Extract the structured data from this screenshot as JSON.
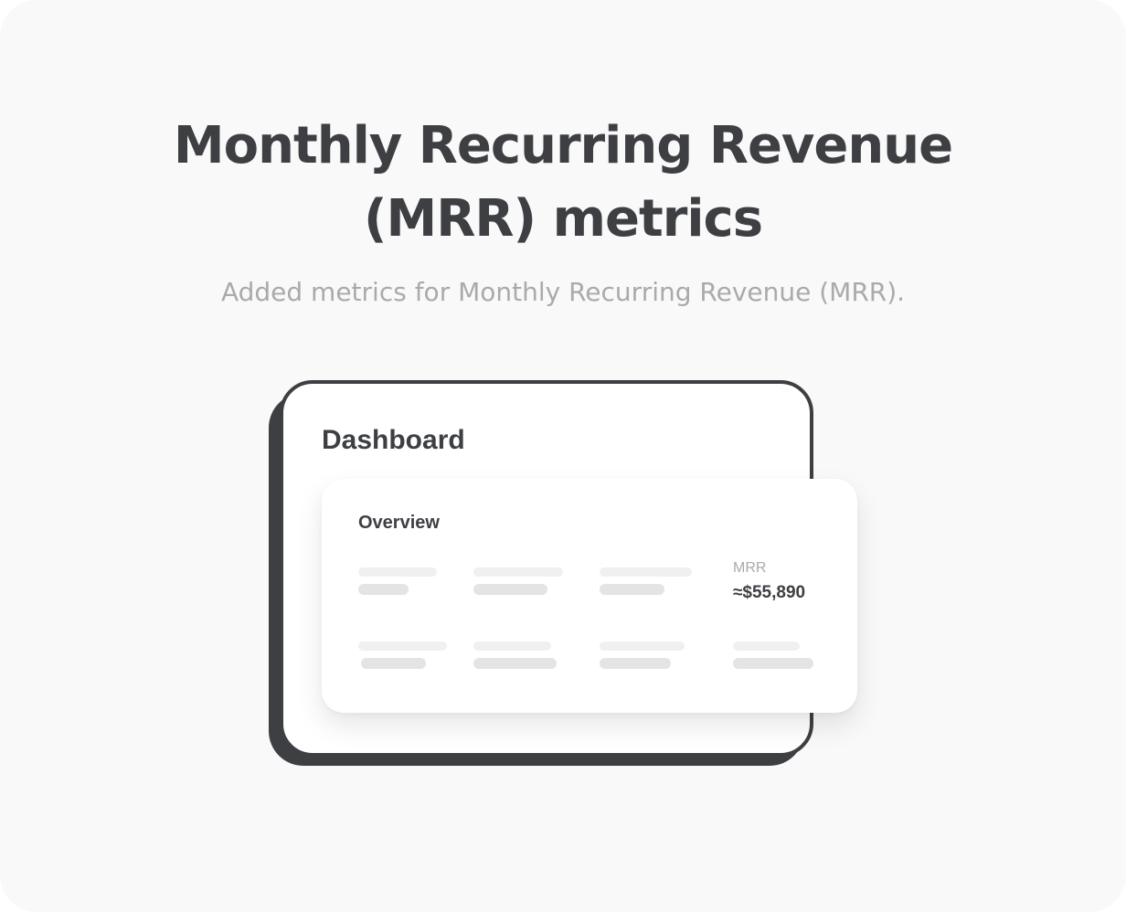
{
  "hero": {
    "title_line_1": "Monthly Recurring Revenue",
    "title_line_2": "(MRR) metrics",
    "subtitle": "Added metrics for Monthly Recurring Revenue (MRR)."
  },
  "dashboard": {
    "title": "Dashboard",
    "overview": {
      "title": "Overview",
      "mrr_label": "MRR",
      "mrr_value": "≈$55,890"
    }
  },
  "colors": {
    "text_dark": "#3d3f43",
    "text_muted": "#aaaaaa",
    "background": "#f9f9f9",
    "card": "#ffffff",
    "placeholder_light": "#f0f0f0",
    "placeholder_mid": "#e4e4e4"
  }
}
